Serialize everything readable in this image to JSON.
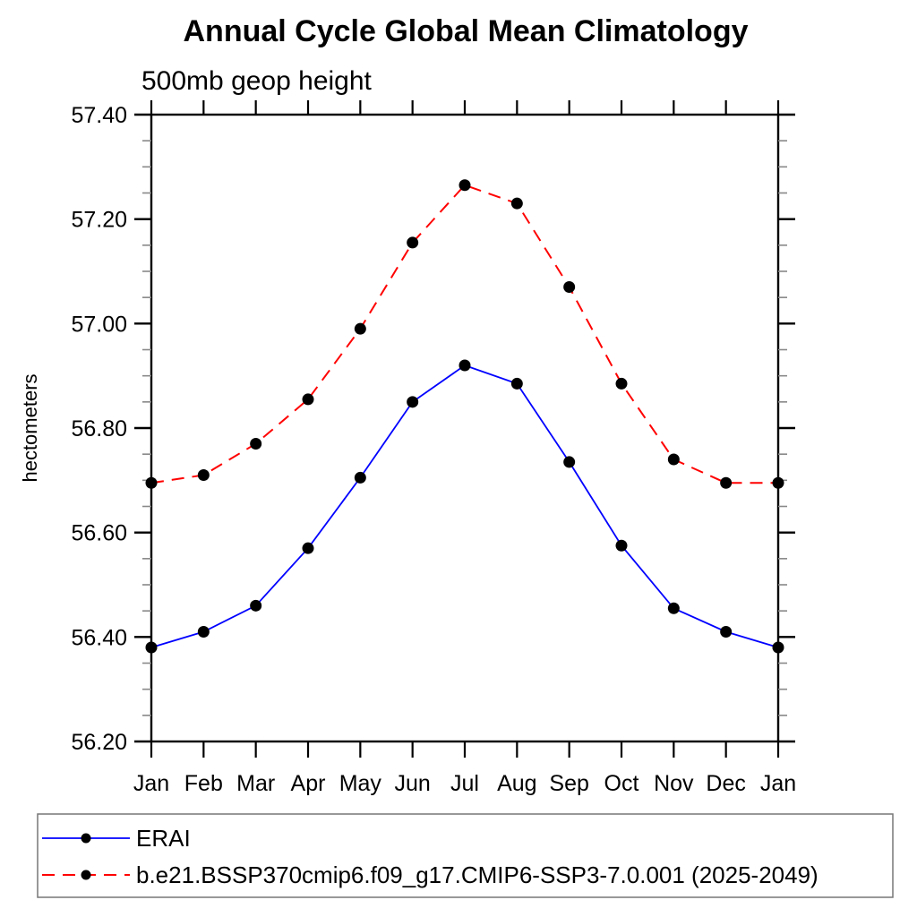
{
  "figure": {
    "title": "Annual Cycle Global Mean Climatology",
    "subtitle": "500mb geop height",
    "ylabel": "hectometers"
  },
  "chart_data": {
    "type": "line",
    "title": "Annual Cycle Global Mean Climatology",
    "subtitle": "500mb geop height",
    "ylabel": "hectometers",
    "xlabel": "",
    "categories": [
      "Jan",
      "Feb",
      "Mar",
      "Apr",
      "May",
      "Jun",
      "Jul",
      "Aug",
      "Sep",
      "Oct",
      "Nov",
      "Dec",
      "Jan"
    ],
    "series": [
      {
        "name": "ERAI",
        "color": "#0000ff",
        "line_style": "solid",
        "marker": "filled-circle",
        "marker_color": "#000000",
        "values": [
          56.38,
          56.41,
          56.46,
          56.57,
          56.705,
          56.85,
          56.92,
          56.885,
          56.735,
          56.575,
          56.455,
          56.41,
          56.38
        ]
      },
      {
        "name": "b.e21.BSSP370cmip6.f09_g17.CMIP6-SSP3-7.0.001 (2025-2049)",
        "color": "#ff0000",
        "line_style": "dashed",
        "marker": "filled-circle",
        "marker_color": "#000000",
        "values": [
          56.695,
          56.71,
          56.77,
          56.855,
          56.99,
          57.155,
          57.265,
          57.23,
          57.07,
          56.885,
          56.74,
          56.695,
          56.695
        ]
      }
    ],
    "ylim": [
      56.2,
      57.4
    ],
    "y_major_tick_step": 0.2,
    "y_minor_tick_step": 0.05,
    "y_tick_labels": [
      "56.20",
      "56.40",
      "56.60",
      "56.80",
      "57.00",
      "57.20",
      "57.40"
    ],
    "grid": false,
    "legend_position": "bottom-left",
    "axis_color": "#000000",
    "minor_tick_color": "#888888"
  }
}
